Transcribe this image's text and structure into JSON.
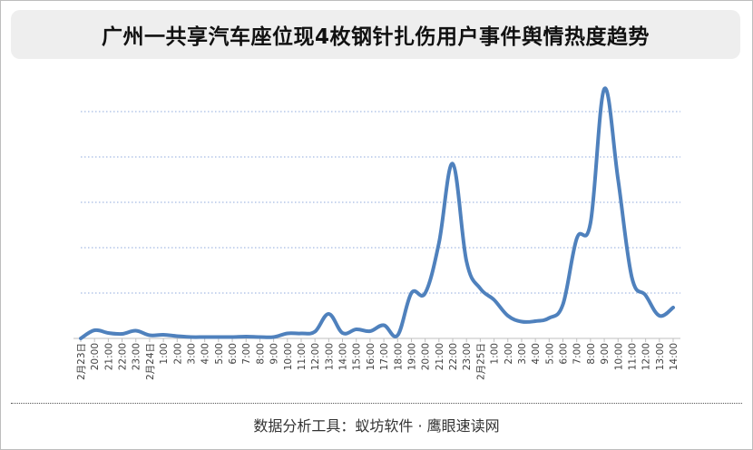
{
  "title": "广州一共享汽车座位现4枚钢针扎伤用户事件舆情热度趋势",
  "footer": "数据分析工具：蚁坊软件 · 鹰眼速读网",
  "colors": {
    "line": "#4f81bd",
    "grid": "#8faadc",
    "axis": "#bfbfbf",
    "tick_text": "#404040"
  },
  "chart_data": {
    "type": "line",
    "title": "广州一共享汽车座位现4枚钢针扎伤用户事件舆情热度趋势",
    "xlabel": "",
    "ylabel": "",
    "y_tick_labels_shown": false,
    "grid": "horizontal dotted",
    "categories": [
      "2月23日",
      "20:00",
      "21:00",
      "22:00",
      "23:00",
      "2月24日",
      "1:00",
      "2:00",
      "3:00",
      "4:00",
      "5:00",
      "6:00",
      "7:00",
      "8:00",
      "9:00",
      "10:00",
      "11:00",
      "12:00",
      "13:00",
      "14:00",
      "15:00",
      "16:00",
      "17:00",
      "18:00",
      "19:00",
      "20:00",
      "21:00",
      "22:00",
      "23:00",
      "2月25日",
      "1:00",
      "2:00",
      "3:00",
      "4:00",
      "5:00",
      "6:00",
      "7:00",
      "8:00",
      "9:00",
      "10:00",
      "11:00",
      "12:00",
      "13:00",
      "14:00"
    ],
    "ylim": [
      0,
      55
    ],
    "series": [
      {
        "values": [
          0,
          1.8,
          1.2,
          1,
          1.7,
          0.7,
          0.8,
          0.5,
          0.3,
          0.3,
          0.3,
          0.3,
          0.4,
          0.3,
          0.3,
          1.1,
          1.1,
          1.5,
          5.4,
          1.2,
          2,
          1.6,
          2.9,
          0.7,
          10,
          10,
          21,
          38.5,
          17,
          11,
          8.5,
          5,
          3.7,
          3.8,
          4.5,
          7.5,
          22,
          25.5,
          55,
          35,
          13.5,
          9.5,
          5,
          6.8
        ]
      }
    ]
  }
}
